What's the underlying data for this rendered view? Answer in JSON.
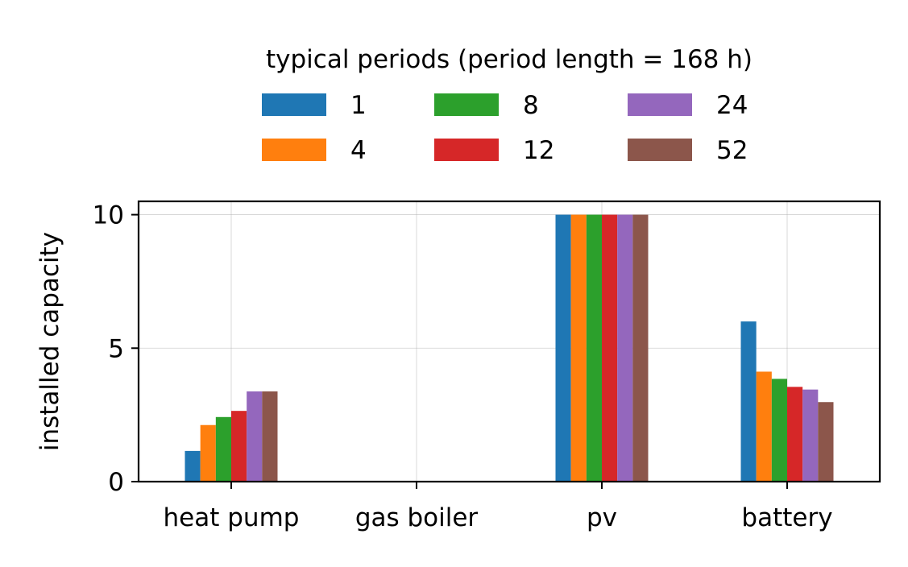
{
  "chart_data": {
    "type": "bar",
    "categories": [
      "heat pump",
      "gas boiler",
      "pv",
      "battery"
    ],
    "ylabel": "installed capacity",
    "xlabel": "",
    "ylim": [
      0,
      10.5
    ],
    "yticks": [
      0,
      5,
      10
    ],
    "ytick_labels": [
      "0",
      "5",
      "10"
    ],
    "grid": true,
    "legend": {
      "title": "typical periods (period length = 168 h)",
      "placement": "top-center",
      "columns": 3
    },
    "series": [
      {
        "name": "1",
        "color": "#1f77b4",
        "values": [
          1.15,
          0,
          10,
          6.0
        ]
      },
      {
        "name": "4",
        "color": "#ff7f0e",
        "values": [
          2.12,
          0,
          10,
          4.12
        ]
      },
      {
        "name": "8",
        "color": "#2ca02c",
        "values": [
          2.42,
          0,
          10,
          3.85
        ]
      },
      {
        "name": "12",
        "color": "#d62728",
        "values": [
          2.65,
          0,
          10,
          3.55
        ]
      },
      {
        "name": "24",
        "color": "#9467bd",
        "values": [
          3.38,
          0,
          10,
          3.45
        ]
      },
      {
        "name": "52",
        "color": "#8c564b",
        "values": [
          3.38,
          0,
          10,
          2.98
        ]
      }
    ]
  }
}
